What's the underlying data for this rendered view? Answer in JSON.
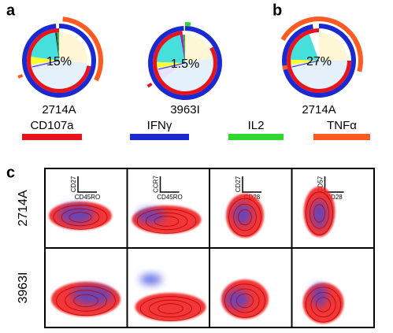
{
  "panels": {
    "a": "a",
    "b": "b",
    "c": "c"
  },
  "pies": [
    {
      "percent": "15%",
      "label": "2714A"
    },
    {
      "percent": "1.5%",
      "label": "3963I"
    },
    {
      "percent": "27%",
      "label": "2714A"
    }
  ],
  "legend": [
    {
      "label": "CD107a",
      "color": "#e8141c"
    },
    {
      "label": "IFNγ",
      "color": "#1a2ad0"
    },
    {
      "label": "IL2",
      "color": "#2ed82e"
    },
    {
      "label": "TNFα",
      "color": "#ff5a22"
    }
  ],
  "grid": {
    "rows": [
      "2714A",
      "3963I"
    ],
    "columns": [
      {
        "y_axis": "CD27",
        "x_axis": "CD45RO"
      },
      {
        "y_axis": "CCR7",
        "x_axis": "CD45RO"
      },
      {
        "y_axis": "CD27",
        "x_axis": "CD28"
      },
      {
        "y_axis": "CD57",
        "x_axis": "CD28"
      }
    ]
  }
}
